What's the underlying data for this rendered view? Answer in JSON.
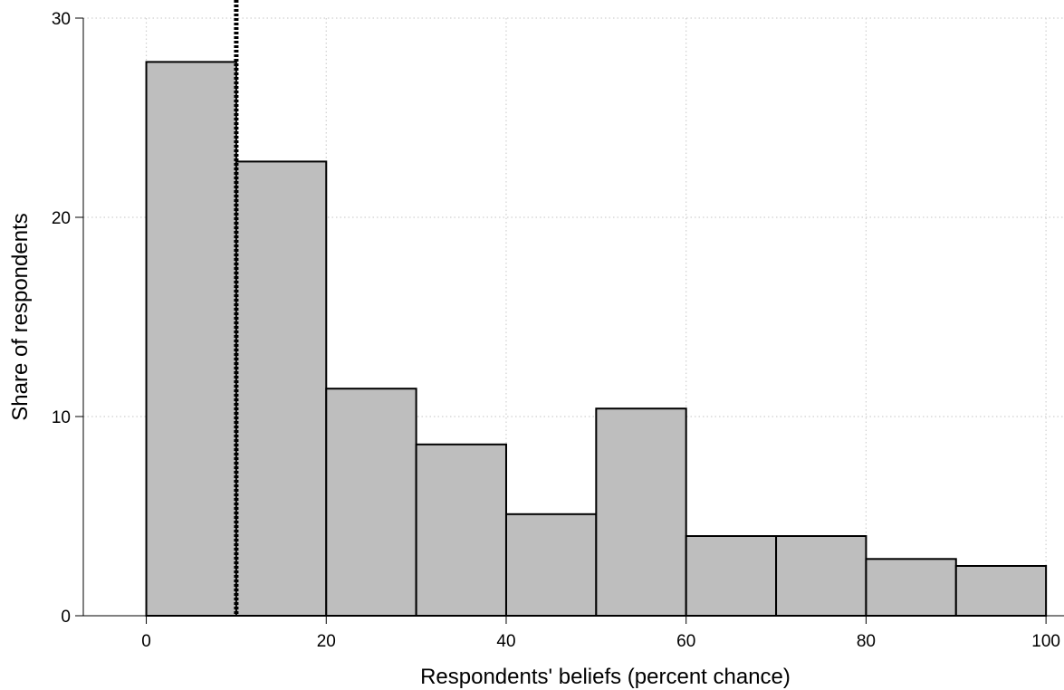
{
  "chart_data": {
    "type": "bar",
    "subtype": "histogram",
    "title": "",
    "xlabel": "Respondents' beliefs (percent chance)",
    "ylabel": "Share of respondents",
    "bin_edges": [
      0,
      10,
      20,
      30,
      40,
      50,
      60,
      70,
      80,
      90,
      100
    ],
    "values": [
      27.8,
      22.8,
      11.4,
      8.6,
      5.1,
      10.4,
      4.0,
      4.0,
      2.85,
      2.5
    ],
    "xlim": [
      -7,
      102
    ],
    "ylim": [
      0,
      30
    ],
    "x_ticks": [
      0,
      20,
      40,
      60,
      80,
      100
    ],
    "y_ticks": [
      0,
      10,
      20,
      30
    ],
    "reference_line": {
      "x": 10,
      "style": "dotted",
      "color": "#000000"
    },
    "grid": true,
    "grid_style": "dotted",
    "legend": false,
    "colors": {
      "bar_fill": "#bebebe",
      "bar_stroke": "#000000",
      "grid": "#d0d0d0",
      "axis": "#000000"
    }
  }
}
